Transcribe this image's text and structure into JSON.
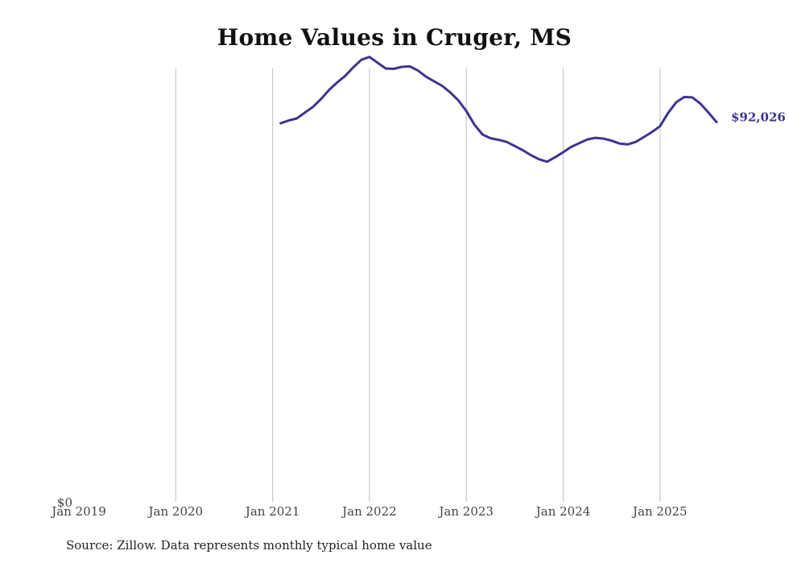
{
  "chart_data": {
    "type": "line",
    "title": "Home Values in Cruger, MS",
    "source": "Source: Zillow. Data represents monthly typical home value",
    "x_ticks": [
      "Jan 2019",
      "Jan 2020",
      "Jan 2021",
      "Jan 2022",
      "Jan 2023",
      "Jan 2024",
      "Jan 2025"
    ],
    "y_ticks": [
      "$0"
    ],
    "xlim": [
      "2019-01",
      "2025-08"
    ],
    "ylim": [
      0,
      105000
    ],
    "grid": "vertical",
    "color": "#3d3591",
    "end_label": "$92,026",
    "series": [
      {
        "x": [
          "2021-02",
          "2021-03",
          "2021-04",
          "2021-05",
          "2021-06",
          "2021-07",
          "2021-08",
          "2021-09",
          "2021-10",
          "2021-11",
          "2021-12",
          "2022-01",
          "2022-02",
          "2022-03",
          "2022-04",
          "2022-05",
          "2022-06",
          "2022-07",
          "2022-08",
          "2022-09",
          "2022-10",
          "2022-11",
          "2022-12",
          "2023-01",
          "2023-02",
          "2023-03",
          "2023-04",
          "2023-05",
          "2023-06",
          "2023-07",
          "2023-08",
          "2023-09",
          "2023-10",
          "2023-11",
          "2023-12",
          "2024-01",
          "2024-02",
          "2024-03",
          "2024-04",
          "2024-05",
          "2024-06",
          "2024-07",
          "2024-08",
          "2024-09",
          "2024-10",
          "2024-11",
          "2024-12",
          "2025-01",
          "2025-02",
          "2025-03",
          "2025-04",
          "2025-05",
          "2025-06",
          "2025-07",
          "2025-08"
        ],
        "values": [
          91700,
          92400,
          92900,
          94300,
          95700,
          97600,
          99800,
          101600,
          103200,
          105300,
          107100,
          107800,
          106400,
          105000,
          104900,
          105400,
          105500,
          104500,
          103000,
          101900,
          100800,
          99200,
          97300,
          94700,
          91400,
          89000,
          88100,
          87700,
          87200,
          86200,
          85200,
          84000,
          83000,
          82400,
          83500,
          84700,
          86000,
          86900,
          87800,
          88200,
          88000,
          87500,
          86800,
          86600,
          87200,
          88400,
          89600,
          91000,
          94200,
          96800,
          98100,
          98000,
          96500,
          94300,
          92026
        ]
      }
    ]
  }
}
